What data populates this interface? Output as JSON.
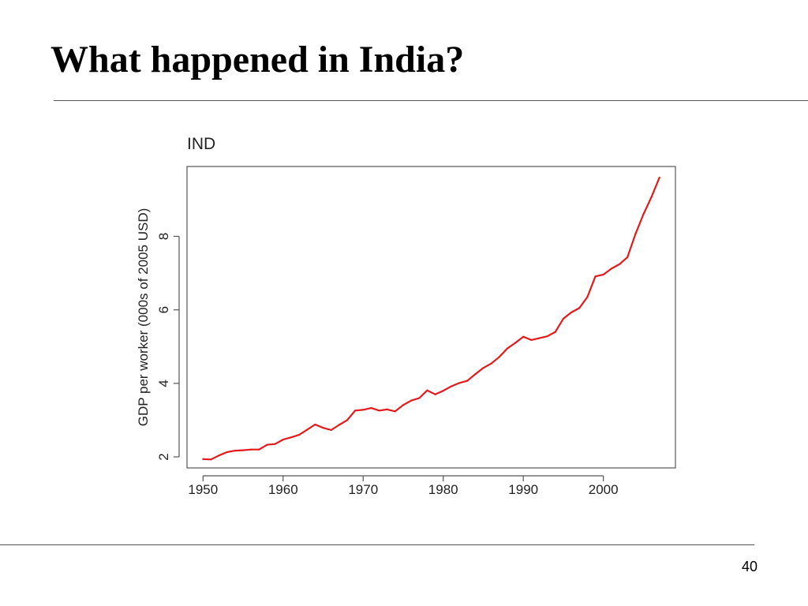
{
  "slide": {
    "title": "What happened in India?",
    "page_number": "40"
  },
  "colors": {
    "series_line": "#e31a1c",
    "frame": "#555555",
    "text": "#222222"
  },
  "chart_data": {
    "type": "line",
    "title": "IND",
    "xlabel": "",
    "ylabel": "GDP per worker (000s of 2005 USD)",
    "xlim": [
      1948,
      2009
    ],
    "ylim": [
      1.7,
      9.9
    ],
    "xticks": [
      1950,
      1960,
      1970,
      1980,
      1990,
      2000
    ],
    "yticks": [
      2,
      4,
      6,
      8
    ],
    "grid": false,
    "legend": "none",
    "series": [
      {
        "x": [
          1950,
          1951,
          1952,
          1953,
          1954,
          1955,
          1956,
          1957,
          1958,
          1959,
          1960,
          1961,
          1962,
          1963,
          1964,
          1965,
          1966,
          1967,
          1968,
          1969,
          1970,
          1971,
          1972,
          1973,
          1974,
          1975,
          1976,
          1977,
          1978,
          1979,
          1980,
          1981,
          1982,
          1983,
          1984,
          1985,
          1986,
          1987,
          1988,
          1989,
          1990,
          1991,
          1992,
          1993,
          1994,
          1995,
          1996,
          1997,
          1998,
          1999,
          2000,
          2001,
          2002,
          2003,
          2004,
          2005,
          2006,
          2007
        ],
        "values": [
          1.94,
          1.93,
          2.04,
          2.13,
          2.17,
          2.18,
          2.2,
          2.2,
          2.33,
          2.35,
          2.47,
          2.53,
          2.6,
          2.74,
          2.88,
          2.79,
          2.73,
          2.87,
          3.0,
          3.26,
          3.28,
          3.33,
          3.26,
          3.29,
          3.24,
          3.41,
          3.53,
          3.6,
          3.81,
          3.7,
          3.8,
          3.92,
          4.01,
          4.07,
          4.25,
          4.42,
          4.54,
          4.72,
          4.95,
          5.1,
          5.27,
          5.18,
          5.23,
          5.28,
          5.4,
          5.76,
          5.93,
          6.05,
          6.35,
          6.91,
          6.96,
          7.12,
          7.24,
          7.43,
          8.06,
          8.6,
          9.07,
          9.6
        ]
      }
    ]
  }
}
